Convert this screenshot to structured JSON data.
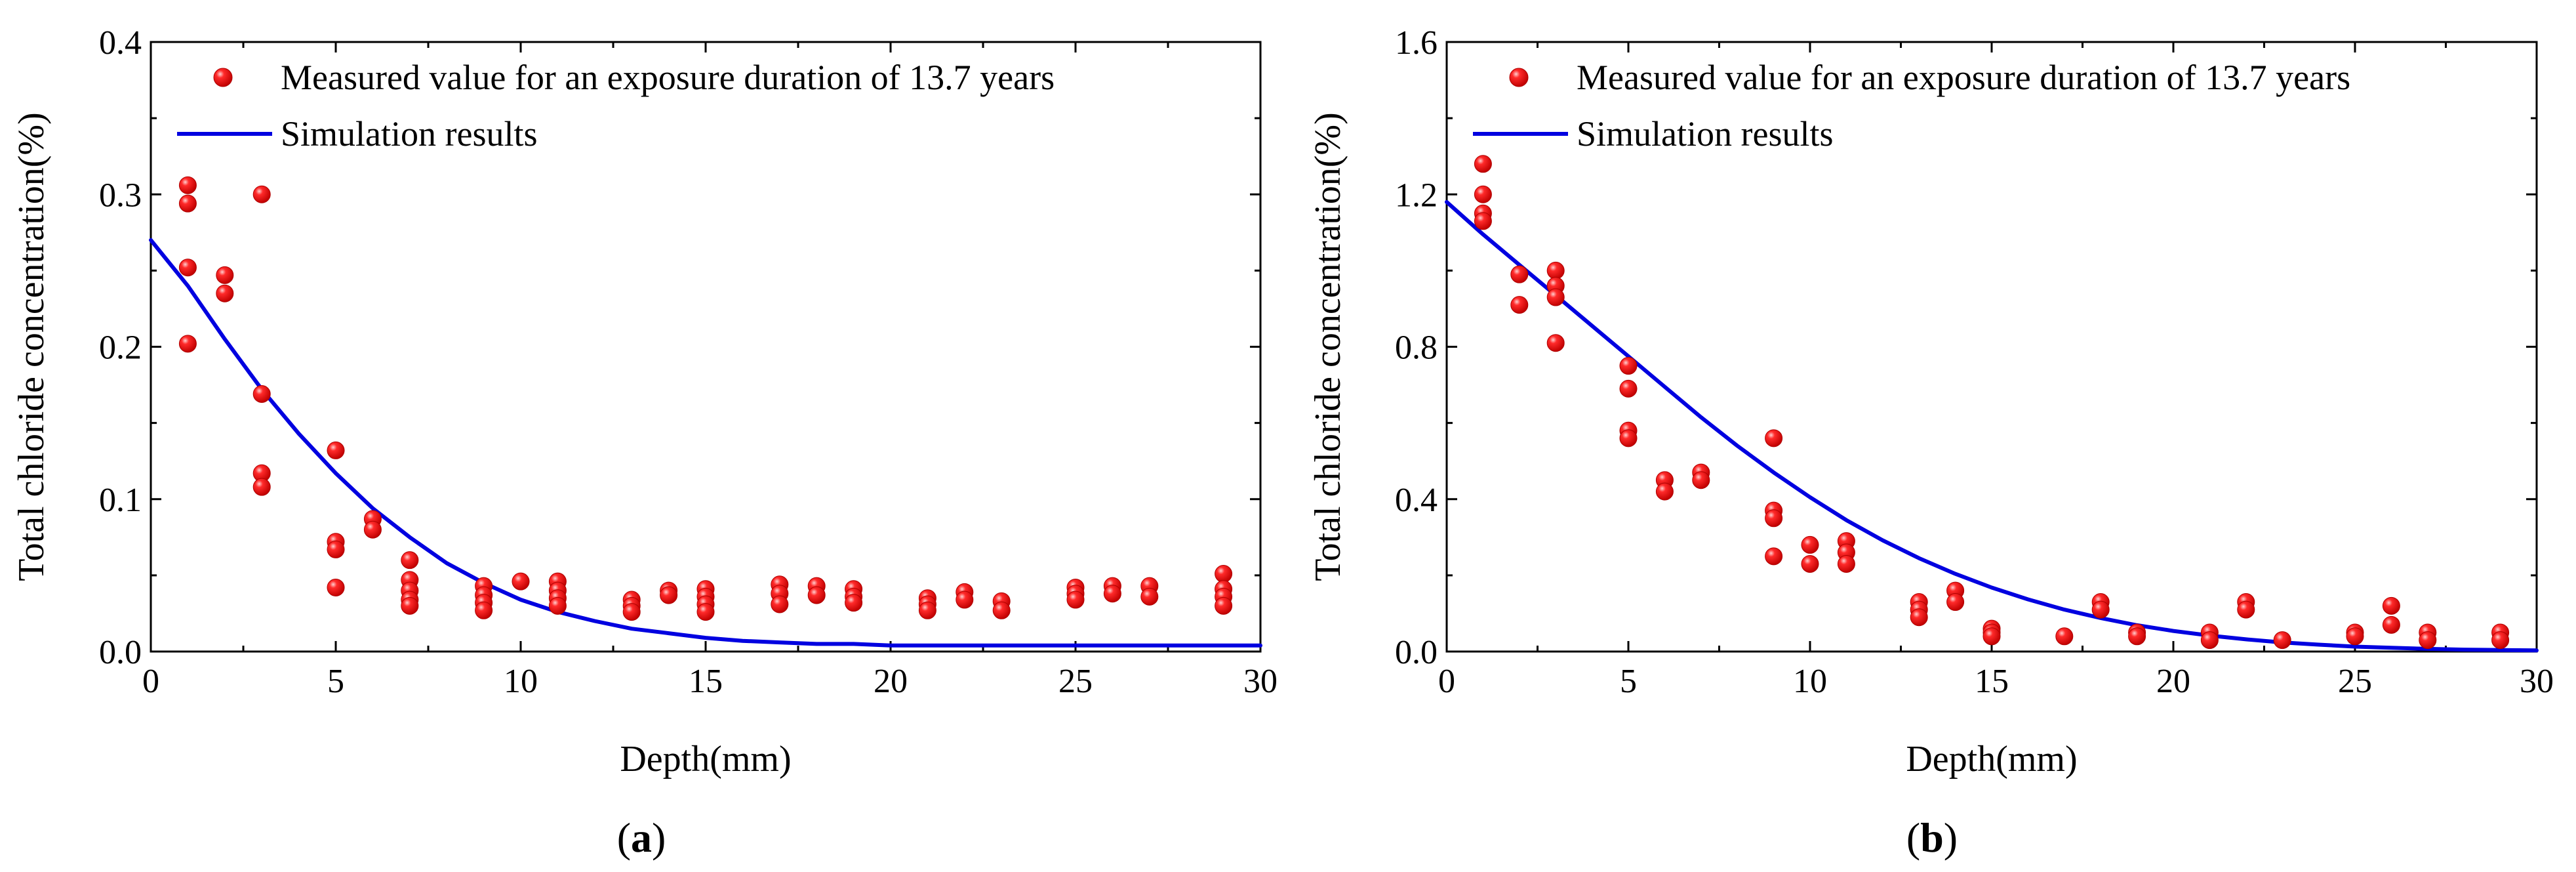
{
  "chart_data": [
    {
      "type": "scatter",
      "panel_label": "(a)",
      "panel_letter": "a",
      "xlabel": "Depth(mm)",
      "ylabel": "Total chloride concentration(%)",
      "xlim": [
        0,
        30
      ],
      "ylim": [
        0,
        0.4
      ],
      "xticks": [
        0,
        5,
        10,
        15,
        20,
        25,
        30
      ],
      "yticks": [
        0.0,
        0.1,
        0.2,
        0.3,
        0.4
      ],
      "xtick_labels": [
        "0",
        "5",
        "10",
        "15",
        "20",
        "25",
        "30"
      ],
      "ytick_labels": [
        "0.0",
        "0.1",
        "0.2",
        "0.3",
        "0.4"
      ],
      "grid": false,
      "legend_position": "top-left",
      "series": [
        {
          "name": "Measured value for an exposure duration of 13.7 years",
          "kind": "scatter",
          "color": "#e60000",
          "points": [
            [
              1,
              0.306
            ],
            [
              1,
              0.294
            ],
            [
              1,
              0.252
            ],
            [
              1,
              0.202
            ],
            [
              2,
              0.247
            ],
            [
              2,
              0.235
            ],
            [
              3,
              0.3
            ],
            [
              3,
              0.169
            ],
            [
              3,
              0.117
            ],
            [
              3,
              0.108
            ],
            [
              5,
              0.132
            ],
            [
              5,
              0.072
            ],
            [
              5,
              0.067
            ],
            [
              5,
              0.042
            ],
            [
              6,
              0.087
            ],
            [
              6,
              0.08
            ],
            [
              7,
              0.06
            ],
            [
              7,
              0.047
            ],
            [
              7,
              0.04
            ],
            [
              7,
              0.034
            ],
            [
              7,
              0.03
            ],
            [
              9,
              0.043
            ],
            [
              9,
              0.037
            ],
            [
              9,
              0.032
            ],
            [
              9,
              0.027
            ],
            [
              10,
              0.046
            ],
            [
              11,
              0.046
            ],
            [
              11,
              0.04
            ],
            [
              11,
              0.035
            ],
            [
              11,
              0.03
            ],
            [
              13,
              0.034
            ],
            [
              13,
              0.03
            ],
            [
              13,
              0.026
            ],
            [
              14,
              0.04
            ],
            [
              14,
              0.037
            ],
            [
              15,
              0.041
            ],
            [
              15,
              0.036
            ],
            [
              15,
              0.031
            ],
            [
              15,
              0.026
            ],
            [
              17,
              0.044
            ],
            [
              17,
              0.038
            ],
            [
              17,
              0.031
            ],
            [
              18,
              0.043
            ],
            [
              18,
              0.037
            ],
            [
              19,
              0.041
            ],
            [
              19,
              0.036
            ],
            [
              19,
              0.032
            ],
            [
              21,
              0.035
            ],
            [
              21,
              0.031
            ],
            [
              21,
              0.027
            ],
            [
              22,
              0.039
            ],
            [
              22,
              0.034
            ],
            [
              23,
              0.033
            ],
            [
              23,
              0.027
            ],
            [
              25,
              0.042
            ],
            [
              25,
              0.038
            ],
            [
              25,
              0.034
            ],
            [
              26,
              0.043
            ],
            [
              26,
              0.038
            ],
            [
              27,
              0.043
            ],
            [
              27,
              0.036
            ],
            [
              29,
              0.051
            ],
            [
              29,
              0.041
            ],
            [
              29,
              0.036
            ],
            [
              29,
              0.03
            ]
          ]
        },
        {
          "name": "Simulation results",
          "kind": "line",
          "color": "#0000e0",
          "x": [
            0,
            1,
            2,
            3,
            4,
            5,
            6,
            7,
            8,
            9,
            10,
            11,
            12,
            13,
            14,
            15,
            16,
            17,
            18,
            19,
            20,
            21,
            22,
            23,
            24,
            25,
            26,
            27,
            28,
            29,
            30
          ],
          "y": [
            0.27,
            0.24,
            0.205,
            0.172,
            0.143,
            0.117,
            0.094,
            0.075,
            0.058,
            0.045,
            0.034,
            0.026,
            0.02,
            0.015,
            0.012,
            0.009,
            0.007,
            0.006,
            0.005,
            0.005,
            0.004,
            0.004,
            0.004,
            0.004,
            0.004,
            0.004,
            0.004,
            0.004,
            0.004,
            0.004,
            0.004
          ]
        }
      ]
    },
    {
      "type": "scatter",
      "panel_label": "(b)",
      "panel_letter": "b",
      "xlabel": "Depth(mm)",
      "ylabel": "Total chloride concentration(%)",
      "xlim": [
        0,
        30
      ],
      "ylim": [
        0,
        1.6
      ],
      "xticks": [
        0,
        5,
        10,
        15,
        20,
        25,
        30
      ],
      "yticks": [
        0.0,
        0.4,
        0.8,
        1.2,
        1.6
      ],
      "xtick_labels": [
        "0",
        "5",
        "10",
        "15",
        "20",
        "25",
        "30"
      ],
      "ytick_labels": [
        "0.0",
        "0.4",
        "0.8",
        "1.2",
        "1.6"
      ],
      "grid": false,
      "legend_position": "top-left",
      "series": [
        {
          "name": "Measured value for an exposure duration of 13.7 years",
          "kind": "scatter",
          "color": "#e60000",
          "points": [
            [
              1,
              1.28
            ],
            [
              1,
              1.2
            ],
            [
              1,
              1.15
            ],
            [
              1,
              1.13
            ],
            [
              2,
              0.99
            ],
            [
              2,
              0.91
            ],
            [
              3,
              1.0
            ],
            [
              3,
              0.96
            ],
            [
              3,
              0.93
            ],
            [
              3,
              0.81
            ],
            [
              5,
              0.75
            ],
            [
              5,
              0.69
            ],
            [
              5,
              0.58
            ],
            [
              5,
              0.56
            ],
            [
              6,
              0.45
            ],
            [
              6,
              0.42
            ],
            [
              7,
              0.47
            ],
            [
              7,
              0.45
            ],
            [
              9,
              0.56
            ],
            [
              9,
              0.37
            ],
            [
              9,
              0.35
            ],
            [
              9,
              0.25
            ],
            [
              10,
              0.28
            ],
            [
              10,
              0.23
            ],
            [
              11,
              0.29
            ],
            [
              11,
              0.26
            ],
            [
              11,
              0.23
            ],
            [
              13,
              0.13
            ],
            [
              13,
              0.11
            ],
            [
              13,
              0.09
            ],
            [
              14,
              0.16
            ],
            [
              14,
              0.13
            ],
            [
              15,
              0.06
            ],
            [
              15,
              0.05
            ],
            [
              15,
              0.04
            ],
            [
              17,
              0.04
            ],
            [
              18,
              0.13
            ],
            [
              18,
              0.11
            ],
            [
              19,
              0.05
            ],
            [
              19,
              0.04
            ],
            [
              21,
              0.05
            ],
            [
              21,
              0.03
            ],
            [
              22,
              0.13
            ],
            [
              22,
              0.11
            ],
            [
              23,
              0.03
            ],
            [
              25,
              0.05
            ],
            [
              25,
              0.04
            ],
            [
              26,
              0.12
            ],
            [
              26,
              0.07
            ],
            [
              27,
              0.05
            ],
            [
              27,
              0.03
            ],
            [
              29,
              0.05
            ],
            [
              29,
              0.03
            ]
          ]
        },
        {
          "name": "Simulation results",
          "kind": "line",
          "color": "#0000e0",
          "x": [
            0,
            1,
            2,
            3,
            4,
            5,
            6,
            7,
            8,
            9,
            10,
            11,
            12,
            13,
            14,
            15,
            16,
            17,
            18,
            19,
            20,
            21,
            22,
            23,
            24,
            25,
            26,
            27,
            28,
            29,
            30
          ],
          "y": [
            1.18,
            1.095,
            1.015,
            0.935,
            0.855,
            0.775,
            0.695,
            0.615,
            0.54,
            0.47,
            0.405,
            0.345,
            0.292,
            0.245,
            0.204,
            0.168,
            0.137,
            0.11,
            0.088,
            0.069,
            0.054,
            0.042,
            0.032,
            0.024,
            0.018,
            0.013,
            0.01,
            0.007,
            0.005,
            0.004,
            0.003
          ]
        }
      ]
    }
  ]
}
